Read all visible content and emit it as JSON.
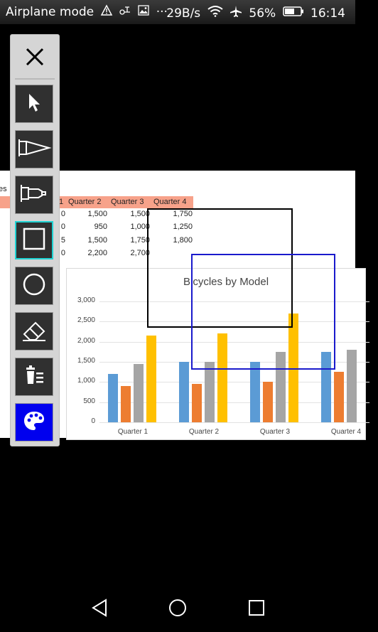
{
  "status_bar": {
    "airplane_mode_label": "Airplane mode",
    "network_speed": "29B/s",
    "battery_percent": "56%",
    "time": "16:14",
    "overflow": "···"
  },
  "sheet": {
    "partial_left_label": "es",
    "headers": [
      "1",
      "Quarter 2",
      "Quarter 3",
      "Quarter 4"
    ],
    "rows": [
      [
        "0",
        "1,500",
        "1,500",
        "1,750"
      ],
      [
        "0",
        "950",
        "1,000",
        "1,250"
      ],
      [
        "5",
        "1,500",
        "1,750",
        "1,800"
      ],
      [
        "0",
        "2,200",
        "2,700",
        ""
      ]
    ]
  },
  "chart_data": {
    "type": "bar",
    "title": "Bicycles by Model",
    "categories": [
      "Quarter 1",
      "Quarter 2",
      "Quarter 3",
      "Quarter 4"
    ],
    "series": [
      {
        "color": "#5b9bd5",
        "values": [
          1200,
          1500,
          1500,
          1750
        ]
      },
      {
        "color": "#ed7d31",
        "values": [
          900,
          950,
          1000,
          1250
        ]
      },
      {
        "color": "#a5a5a5",
        "values": [
          1450,
          1500,
          1750,
          1800
        ]
      },
      {
        "color": "#ffc000",
        "values": [
          2150,
          2200,
          2700,
          null
        ]
      }
    ],
    "yticks": [
      "3,000",
      "2,500",
      "2,000",
      "1,500",
      "1,000",
      "500",
      "0"
    ],
    "ylim": [
      0,
      3000
    ],
    "grid": true
  },
  "toolbar": {
    "tools": [
      "close-icon",
      "pointer-icon",
      "pen-icon",
      "highlighter-icon",
      "rectangle-icon",
      "circle-icon",
      "eraser-icon",
      "clear-all-icon",
      "palette-icon"
    ],
    "selected_tool": "rectangle-icon",
    "palette_color": "#0000ee",
    "selected_border_color": "#1fd3d3"
  },
  "annotations": {
    "rect1_color": "#000000",
    "rect2_color": "#1a1acc"
  },
  "nav_bar": {
    "buttons": [
      "back-icon",
      "home-icon",
      "recents-icon"
    ]
  }
}
